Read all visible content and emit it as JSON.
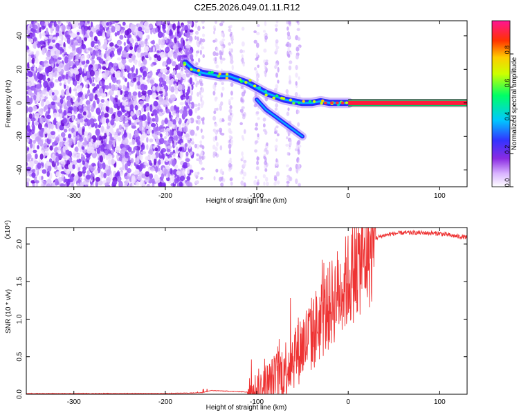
{
  "title": "C2E5.2026.049.01.11.R12",
  "chart_data": [
    {
      "type": "heatmap",
      "title": "C2E5.2026.049.01.11.R12",
      "xlabel": "Height of straight line (km)",
      "ylabel": "Frequency (Hz)",
      "xlim": [
        -352,
        130
      ],
      "ylim": [
        -50,
        49
      ],
      "xticks": [
        -300,
        -200,
        -100,
        0,
        100
      ],
      "yticks": [
        -40,
        -20,
        0,
        20,
        40
      ],
      "colorbar": {
        "label": "Normalized spectral amplitude",
        "range": [
          0,
          1
        ],
        "ticks": [
          "0.0",
          "0.2",
          "0.4",
          "0.6",
          "0.8"
        ],
        "tick_values": [
          0,
          0.2,
          0.4,
          0.6,
          0.8
        ],
        "colors": [
          "#ffffff",
          "#8a2be2",
          "#3333ff",
          "#00c8ff",
          "#00ff66",
          "#ccff00",
          "#ffcc00",
          "#ff3300",
          "#ff1493"
        ]
      },
      "ridge_points": [
        {
          "x": -178,
          "y": 24
        },
        {
          "x": -170,
          "y": 20
        },
        {
          "x": -160,
          "y": 18
        },
        {
          "x": -150,
          "y": 17
        },
        {
          "x": -140,
          "y": 16
        },
        {
          "x": -130,
          "y": 16
        },
        {
          "x": -120,
          "y": 14
        },
        {
          "x": -110,
          "y": 12
        },
        {
          "x": -100,
          "y": 9
        },
        {
          "x": -90,
          "y": 6
        },
        {
          "x": -80,
          "y": 4
        },
        {
          "x": -70,
          "y": 2
        },
        {
          "x": -60,
          "y": 1
        },
        {
          "x": -50,
          "y": 0
        },
        {
          "x": -40,
          "y": 0
        },
        {
          "x": -30,
          "y": 1
        },
        {
          "x": -20,
          "y": 0
        },
        {
          "x": -10,
          "y": 0
        },
        {
          "x": 0,
          "y": 0
        }
      ],
      "branch_points": [
        {
          "x": -100,
          "y": 2
        },
        {
          "x": -90,
          "y": -4
        },
        {
          "x": -80,
          "y": -8
        },
        {
          "x": -70,
          "y": -12
        },
        {
          "x": -60,
          "y": -16
        },
        {
          "x": -50,
          "y": -20
        }
      ],
      "line_band": {
        "x_from": 0,
        "x_to": 130,
        "y": 0,
        "half_width": 1.5
      }
    },
    {
      "type": "line",
      "xlabel": "Height of straight line (km)",
      "ylabel": "SNR (10 * v/v)",
      "yscale_label": "(x10⁴)",
      "xlim": [
        -352,
        130
      ],
      "ylim": [
        0,
        2.22
      ],
      "xticks": [
        -300,
        -200,
        -100,
        0,
        100
      ],
      "yticks": [
        0.0,
        0.5,
        1.0,
        1.5,
        2.0
      ],
      "ytick_labels": [
        "0.0",
        "0.5",
        "1.0",
        "1.5",
        "2.0"
      ],
      "series": [
        {
          "color": "#ee3333",
          "x": [
            -352,
            -300,
            -200,
            -160,
            -150,
            -110,
            -100,
            -90,
            -80,
            -70,
            -60,
            -50,
            -40,
            -30,
            -20,
            -10,
            0,
            10,
            20,
            30,
            40,
            50,
            60,
            80,
            100,
            110,
            120,
            130
          ],
          "y": [
            0.01,
            0.01,
            0.01,
            0.02,
            0.05,
            0.03,
            0.08,
            0.15,
            0.25,
            0.4,
            0.6,
            0.75,
            0.9,
            1.1,
            1.3,
            1.5,
            1.65,
            1.85,
            2.0,
            2.08,
            2.12,
            2.14,
            2.15,
            2.15,
            2.14,
            2.12,
            2.1,
            2.09
          ]
        }
      ]
    }
  ]
}
